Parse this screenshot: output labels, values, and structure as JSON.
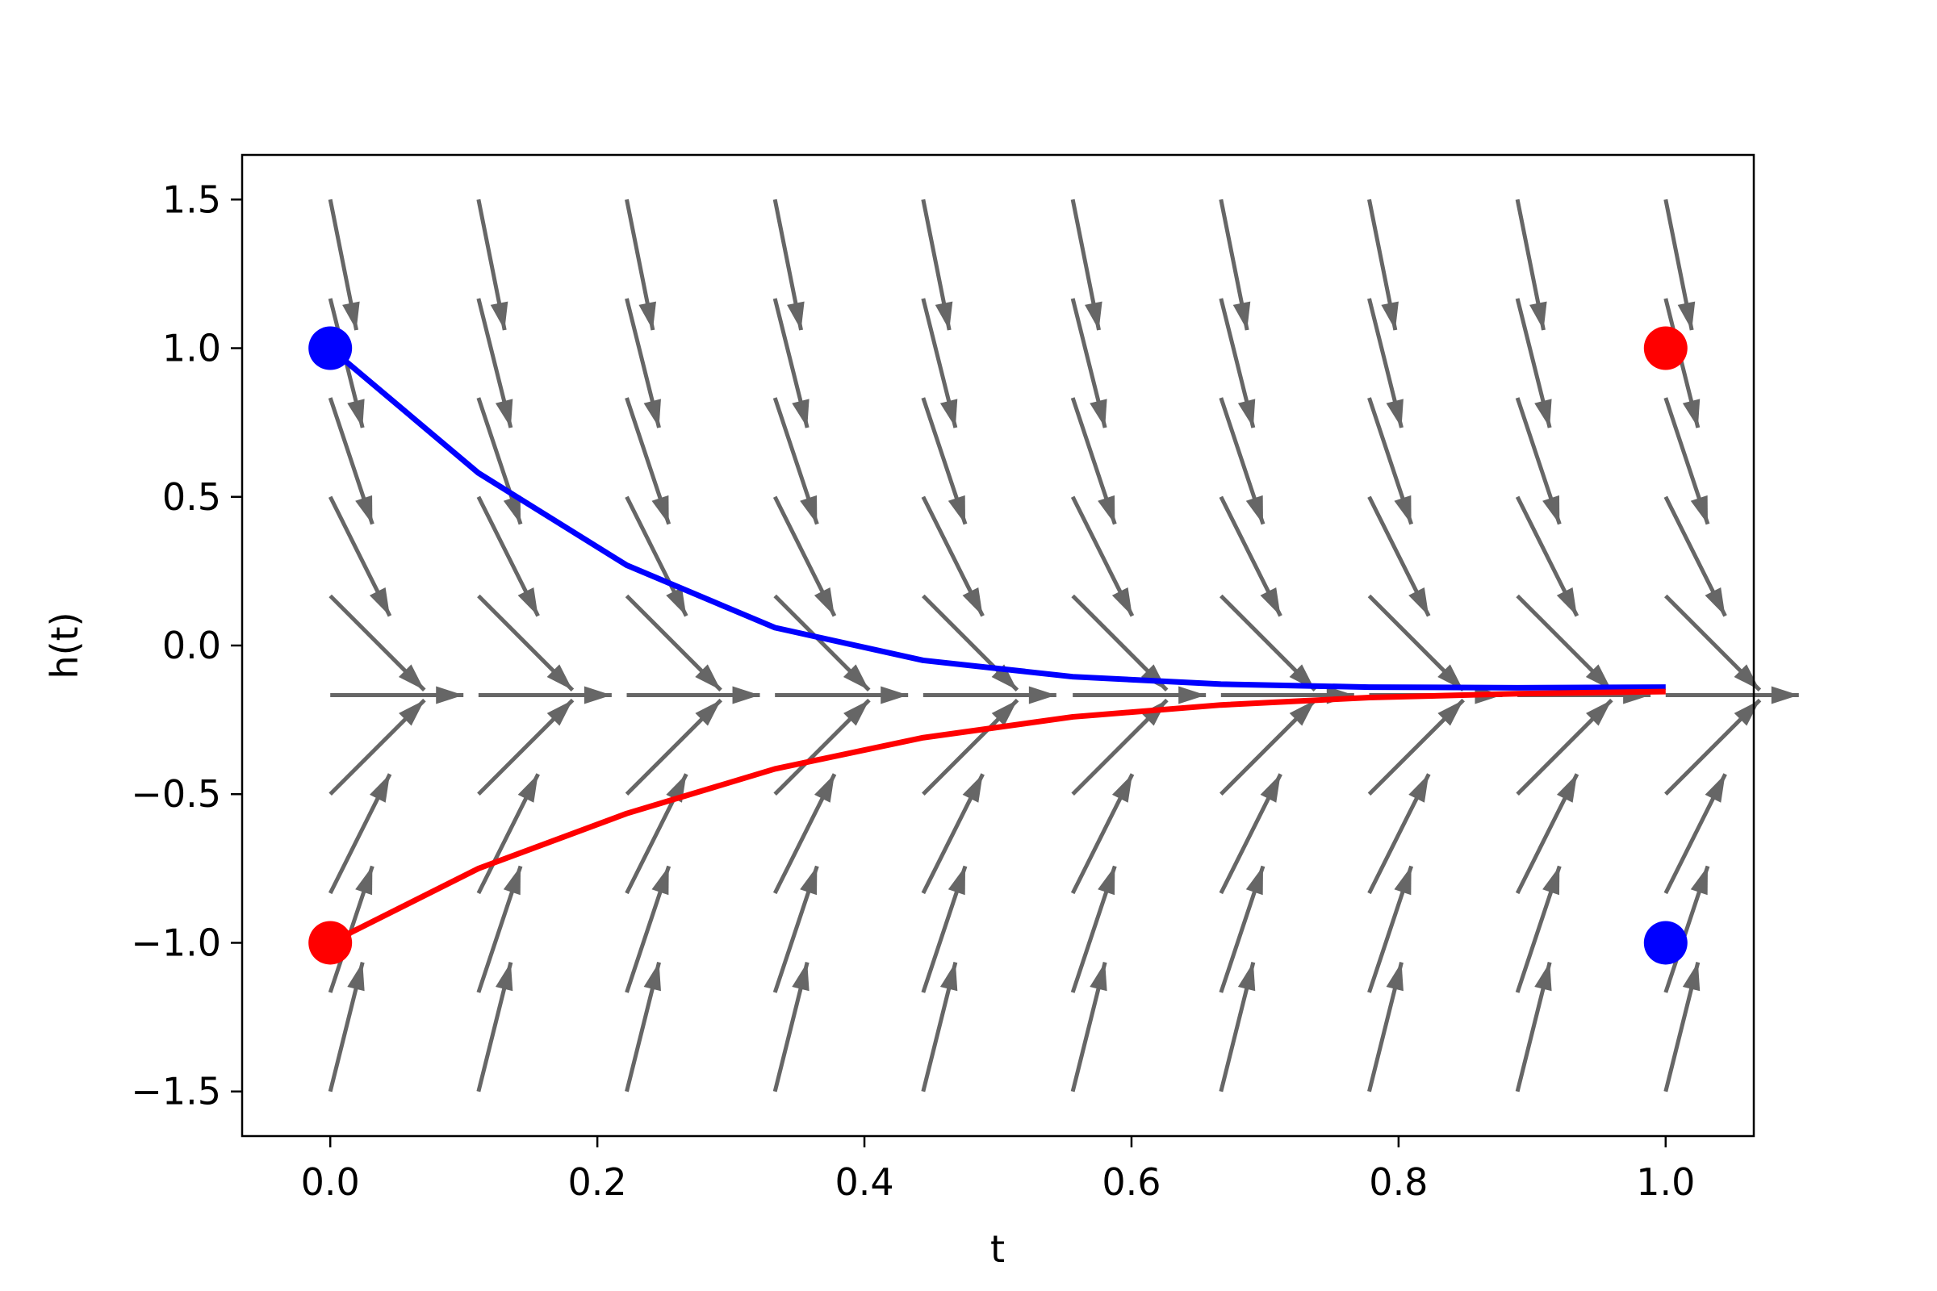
{
  "chart_data": {
    "type": "quiver+line",
    "title": "",
    "xlabel": "t",
    "ylabel": "h(t)",
    "xlim": [
      -0.066,
      1.066
    ],
    "ylim": [
      -1.65,
      1.65
    ],
    "xticks": [
      0.0,
      0.2,
      0.4,
      0.6,
      0.8,
      1.0
    ],
    "xtick_labels": [
      "0.0",
      "0.2",
      "0.4",
      "0.6",
      "0.8",
      "1.0"
    ],
    "yticks": [
      1.5,
      1.0,
      0.5,
      0.0,
      -0.5,
      -1.0,
      -1.5
    ],
    "ytick_labels": [
      "1.5",
      "1.0",
      "0.5",
      "0.0",
      "−0.5",
      "−1.0",
      "−1.5"
    ],
    "grid": false,
    "vector_field": {
      "color": "#666666",
      "t_values": [
        0.0,
        0.111,
        0.222,
        0.333,
        0.444,
        0.556,
        0.667,
        0.778,
        0.889,
        1.0
      ],
      "h_values": [
        1.5,
        1.167,
        0.833,
        0.5,
        0.167,
        -0.167,
        -0.5,
        -0.833,
        -1.167,
        -1.5
      ],
      "equilibrium_h": -0.167
    },
    "series": [
      {
        "color": "#0000ff",
        "x": [
          0.0,
          0.111,
          0.222,
          0.333,
          0.444,
          0.556,
          0.667,
          0.778,
          0.889,
          1.0
        ],
        "y": [
          1.0,
          0.58,
          0.27,
          0.06,
          -0.05,
          -0.105,
          -0.13,
          -0.14,
          -0.142,
          -0.14
        ]
      },
      {
        "color": "#ff0000",
        "x": [
          0.0,
          0.111,
          0.222,
          0.333,
          0.444,
          0.556,
          0.667,
          0.778,
          0.889,
          1.0
        ],
        "y": [
          -1.0,
          -0.75,
          -0.565,
          -0.415,
          -0.31,
          -0.24,
          -0.2,
          -0.175,
          -0.162,
          -0.155
        ]
      }
    ],
    "markers": [
      {
        "x": 0.0,
        "y": 1.0,
        "color": "#0000ff"
      },
      {
        "x": 0.0,
        "y": -1.0,
        "color": "#ff0000"
      },
      {
        "x": 1.0,
        "y": 1.0,
        "color": "#ff0000"
      },
      {
        "x": 1.0,
        "y": -1.0,
        "color": "#0000ff"
      }
    ]
  }
}
